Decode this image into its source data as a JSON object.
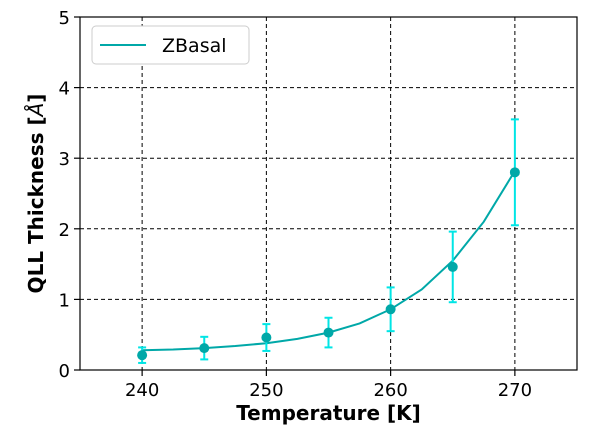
{
  "chart_data": {
    "type": "line",
    "xlabel": "Temperature [K]",
    "ylabel": "QLL Thickness [",
    "ylabel_unit": "Å",
    "ylabel_end": "]",
    "xlim": [
      235,
      275
    ],
    "ylim": [
      0,
      5
    ],
    "xticks": [
      240,
      250,
      260,
      270
    ],
    "yticks": [
      0,
      1,
      2,
      3,
      4,
      5
    ],
    "grid": true,
    "legend_position": "top-left",
    "series": [
      {
        "name": "ZBasal",
        "x": [
          240,
          245,
          250,
          255,
          260,
          265,
          270
        ],
        "y": [
          0.21,
          0.31,
          0.46,
          0.53,
          0.86,
          1.46,
          2.8
        ],
        "yerr_low": [
          0.11,
          0.16,
          0.19,
          0.21,
          0.31,
          0.5,
          0.75
        ],
        "yerr_high": [
          0.11,
          0.16,
          0.19,
          0.21,
          0.31,
          0.5,
          0.75
        ],
        "color": "#00a8a8",
        "errorbar_color": "#00e5e5"
      }
    ],
    "fit_curve": {
      "x": [
        240,
        242.5,
        245,
        247.5,
        250,
        252.5,
        255,
        257.5,
        260,
        262.5,
        265,
        267.5,
        270
      ],
      "y": [
        0.28,
        0.29,
        0.31,
        0.34,
        0.38,
        0.44,
        0.53,
        0.66,
        0.86,
        1.14,
        1.55,
        2.1,
        2.82
      ]
    }
  }
}
